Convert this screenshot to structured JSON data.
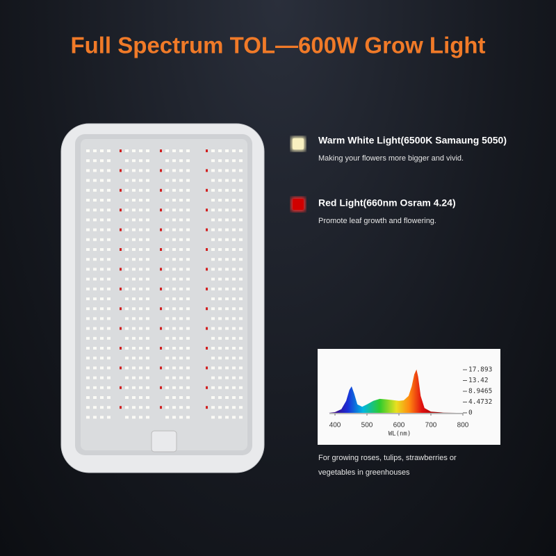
{
  "title": "Full Spectrum TOL—600W Grow Light",
  "features": [
    {
      "heading": "Warm White Light(6500K Samaung 5050)",
      "text": "Making your flowers more bigger and vivid."
    },
    {
      "heading": "Red Light(660nm Osram 4.24)",
      "text": "Promote leaf growth and flowering."
    }
  ],
  "spectrum": {
    "x": [
      380,
      400,
      420,
      435,
      445,
      452,
      460,
      470,
      485,
      500,
      520,
      540,
      560,
      580,
      600,
      615,
      630,
      640,
      648,
      655,
      660,
      668,
      680,
      700,
      740,
      780
    ],
    "values": [
      0,
      0.3,
      1.5,
      5,
      9.5,
      11,
      8,
      3.5,
      2.5,
      3.5,
      5,
      5.8,
      5.6,
      5.3,
      5,
      5.2,
      7,
      11,
      16,
      18,
      15,
      7,
      2,
      0.5,
      0.1,
      0
    ],
    "xlim": [
      400,
      800
    ],
    "ylim": [
      0,
      17.893
    ],
    "xticks": [
      400,
      500,
      600,
      700,
      800
    ],
    "yticks": [
      17.893,
      13.42,
      8.9465,
      4.4732,
      0
    ],
    "xlabel": "WL(nm)"
  },
  "caption": [
    "For growing roses, tulips, strawberries or",
    "vegetables in greenhouses"
  ]
}
